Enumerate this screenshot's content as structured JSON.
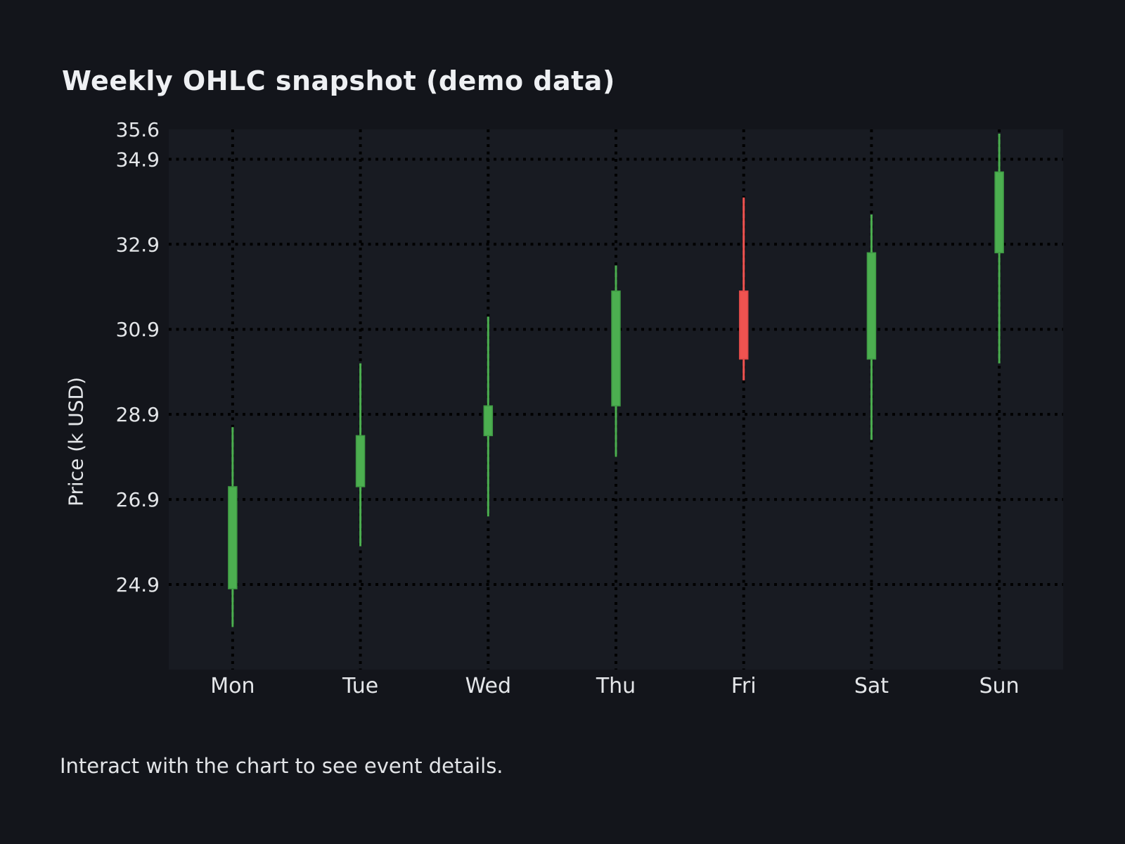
{
  "page": {
    "footer_note": "Interact with the chart to see event details."
  },
  "chart_data": {
    "type": "candlestick",
    "title": "Weekly OHLC snapshot (demo data)",
    "xlabel": "",
    "ylabel": "Price (k USD)",
    "categories": [
      "Mon",
      "Tue",
      "Wed",
      "Thu",
      "Fri",
      "Sat",
      "Sun"
    ],
    "series": [
      {
        "name": "Weekly OHLC",
        "points": [
          {
            "day": "Mon",
            "open": 24.8,
            "high": 28.6,
            "low": 23.9,
            "close": 27.2,
            "direction": "up"
          },
          {
            "day": "Tue",
            "open": 27.2,
            "high": 30.1,
            "low": 25.8,
            "close": 28.4,
            "direction": "up"
          },
          {
            "day": "Wed",
            "open": 28.4,
            "high": 31.2,
            "low": 26.5,
            "close": 29.1,
            "direction": "up"
          },
          {
            "day": "Thu",
            "open": 29.1,
            "high": 32.4,
            "low": 27.9,
            "close": 31.8,
            "direction": "up"
          },
          {
            "day": "Fri",
            "open": 31.8,
            "high": 34.0,
            "low": 29.7,
            "close": 30.2,
            "direction": "down"
          },
          {
            "day": "Sat",
            "open": 30.2,
            "high": 33.6,
            "low": 28.3,
            "close": 32.7,
            "direction": "up"
          },
          {
            "day": "Sun",
            "open": 32.7,
            "high": 35.5,
            "low": 30.1,
            "close": 34.6,
            "direction": "up"
          }
        ]
      }
    ],
    "ylim": [
      22.9,
      35.6
    ],
    "y_tick_values": [
      35.6,
      34.9,
      32.9,
      30.9,
      28.9,
      26.9,
      24.9
    ],
    "grid_values": [
      34.9,
      32.9,
      30.9,
      28.9,
      26.9,
      24.9
    ],
    "grid_style": "dotted",
    "legend_position": "none",
    "colors": {
      "up": "#4caf50",
      "up_border": "#3f9a44",
      "down": "#ef5350",
      "down_border": "#da4747",
      "grid": "#000000",
      "plot_bg": "#181b22",
      "page_bg": "#13151b",
      "tick_text": "#e4e6e9",
      "title_text": "#eef0f3"
    }
  }
}
